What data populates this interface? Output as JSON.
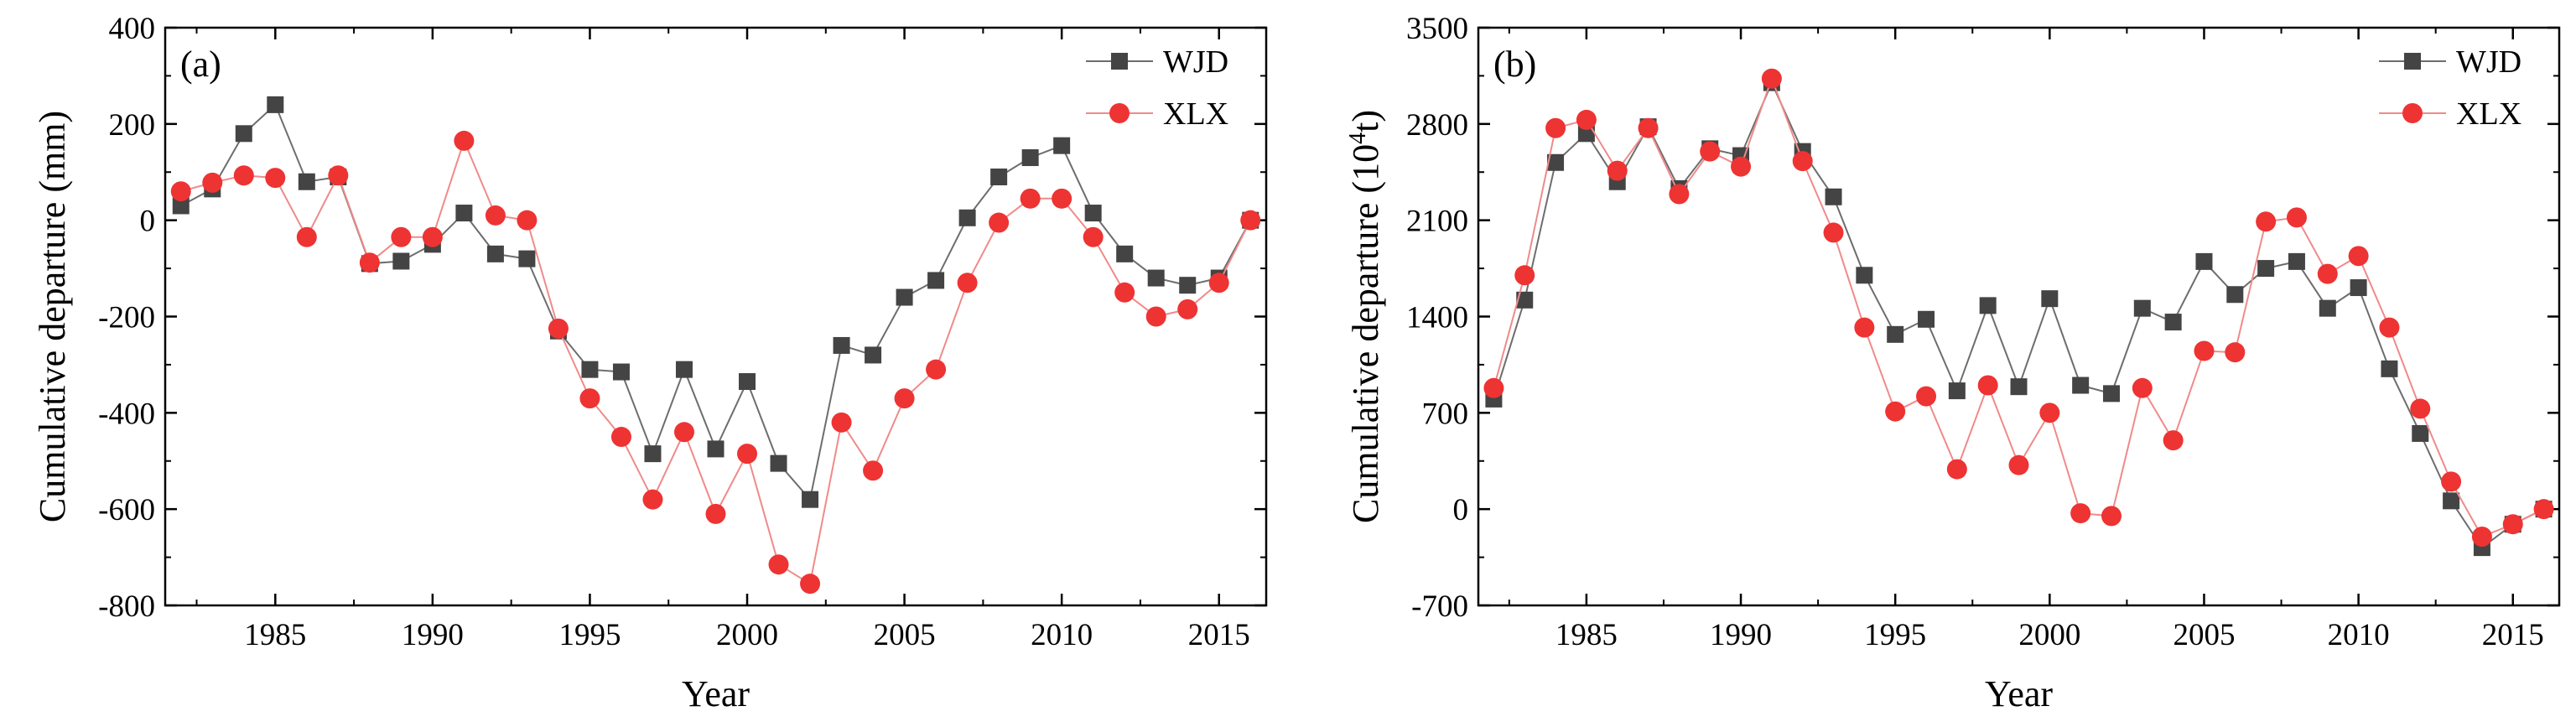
{
  "chart_data": [
    {
      "type": "line",
      "panel_label": "(a)",
      "xlabel": "Year",
      "ylabel": "Cumulative departure (mm)",
      "xlim": [
        1981.5,
        2016.5
      ],
      "ylim": [
        -800,
        400
      ],
      "xticks": [
        1985,
        1990,
        1995,
        2000,
        2005,
        2010,
        2015
      ],
      "yticks": [
        -800,
        -600,
        -400,
        -200,
        0,
        200,
        400
      ],
      "legend_position": "top-right",
      "x": [
        1982,
        1983,
        1984,
        1985,
        1986,
        1987,
        1988,
        1989,
        1990,
        1991,
        1992,
        1993,
        1994,
        1995,
        1996,
        1997,
        1998,
        1999,
        2000,
        2001,
        2002,
        2003,
        2004,
        2005,
        2006,
        2007,
        2008,
        2009,
        2010,
        2011,
        2012,
        2013,
        2014,
        2015,
        2016
      ],
      "series": [
        {
          "name": "WJD",
          "color": "#6d6d6d",
          "marker_color": "#444444",
          "marker": "square",
          "values": [
            30,
            65,
            180,
            240,
            80,
            90,
            -90,
            -85,
            -50,
            15,
            -70,
            -80,
            -230,
            -310,
            -315,
            -485,
            -310,
            -475,
            -335,
            -505,
            -580,
            -260,
            -280,
            -160,
            -125,
            5,
            90,
            130,
            155,
            15,
            -70,
            -120,
            -135,
            -120,
            0
          ]
        },
        {
          "name": "XLX",
          "color": "#f08a8a",
          "marker_color": "#ee3333",
          "marker": "circle",
          "values": [
            60,
            78,
            93,
            88,
            -35,
            93,
            -88,
            -35,
            -35,
            165,
            10,
            0,
            -225,
            -370,
            -450,
            -580,
            -440,
            -610,
            -485,
            -715,
            -755,
            -420,
            -520,
            -370,
            -310,
            -130,
            -5,
            45,
            45,
            -35,
            -150,
            -200,
            -185,
            -130,
            0
          ]
        }
      ]
    },
    {
      "type": "line",
      "panel_label": "(b)",
      "xlabel": "Year",
      "ylabel_main": "Cumulative departure (10",
      "ylabel_sup": "4",
      "ylabel_end": "t)",
      "xlim": [
        1981.5,
        2016.5
      ],
      "ylim": [
        -700,
        3500
      ],
      "xticks": [
        1985,
        1990,
        1995,
        2000,
        2005,
        2010,
        2015
      ],
      "yticks": [
        -700,
        0,
        700,
        1400,
        2100,
        2800,
        3500
      ],
      "legend_position": "top-right",
      "x": [
        1982,
        1983,
        1984,
        1985,
        1986,
        1987,
        1988,
        1989,
        1990,
        1991,
        1992,
        1993,
        1994,
        1995,
        1996,
        1997,
        1998,
        1999,
        2000,
        2001,
        2002,
        2003,
        2004,
        2005,
        2006,
        2007,
        2008,
        2009,
        2010,
        2011,
        2012,
        2013,
        2014,
        2015,
        2016
      ],
      "series": [
        {
          "name": "WJD",
          "color": "#6d6d6d",
          "marker_color": "#444444",
          "marker": "square",
          "values": [
            800,
            1520,
            2520,
            2730,
            2380,
            2780,
            2330,
            2620,
            2570,
            3100,
            2600,
            2270,
            1700,
            1270,
            1380,
            860,
            1480,
            890,
            1530,
            900,
            840,
            1460,
            1360,
            1800,
            1560,
            1750,
            1800,
            1460,
            1610,
            1020,
            550,
            60,
            -280,
            -110,
            0
          ]
        },
        {
          "name": "XLX",
          "color": "#f08a8a",
          "marker_color": "#ee3333",
          "marker": "circle",
          "values": [
            880,
            1700,
            2770,
            2830,
            2460,
            2770,
            2290,
            2600,
            2490,
            3130,
            2530,
            2010,
            1320,
            710,
            820,
            290,
            900,
            320,
            700,
            -30,
            -50,
            880,
            500,
            1150,
            1140,
            2090,
            2120,
            1710,
            1840,
            1320,
            730,
            200,
            -200,
            -110,
            0
          ]
        }
      ]
    }
  ]
}
